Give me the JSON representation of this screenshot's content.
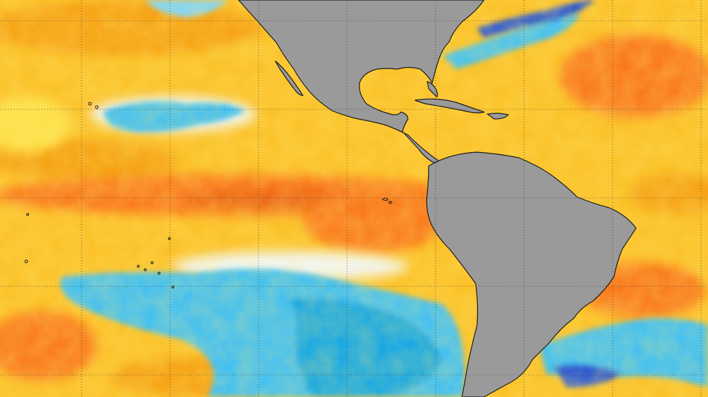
{
  "map": {
    "kind": "sea-surface-temperature-anomaly",
    "regions": [
      "eastern-pacific",
      "caribbean",
      "western-atlantic",
      "north-america",
      "central-america",
      "south-america"
    ],
    "colors": {
      "land": "#9a9a9a",
      "coast": "#1a1a1a",
      "grid": "#3a3a3a",
      "warm_light": "#fde047",
      "warm": "#fbbf24",
      "warmer": "#f59e0b",
      "hot": "#f97316",
      "hotter": "#ea580c",
      "extreme_hot": "#b91c1c",
      "neutral": "#f1f5f9",
      "cool": "#7dd3fc",
      "cold": "#38bdf8",
      "colder": "#0ea5e9",
      "extreme_cold": "#1d4ed8",
      "deep_cold": "#1e1b4b"
    },
    "gridlines": {
      "style": "dotted",
      "visible": true
    }
  }
}
